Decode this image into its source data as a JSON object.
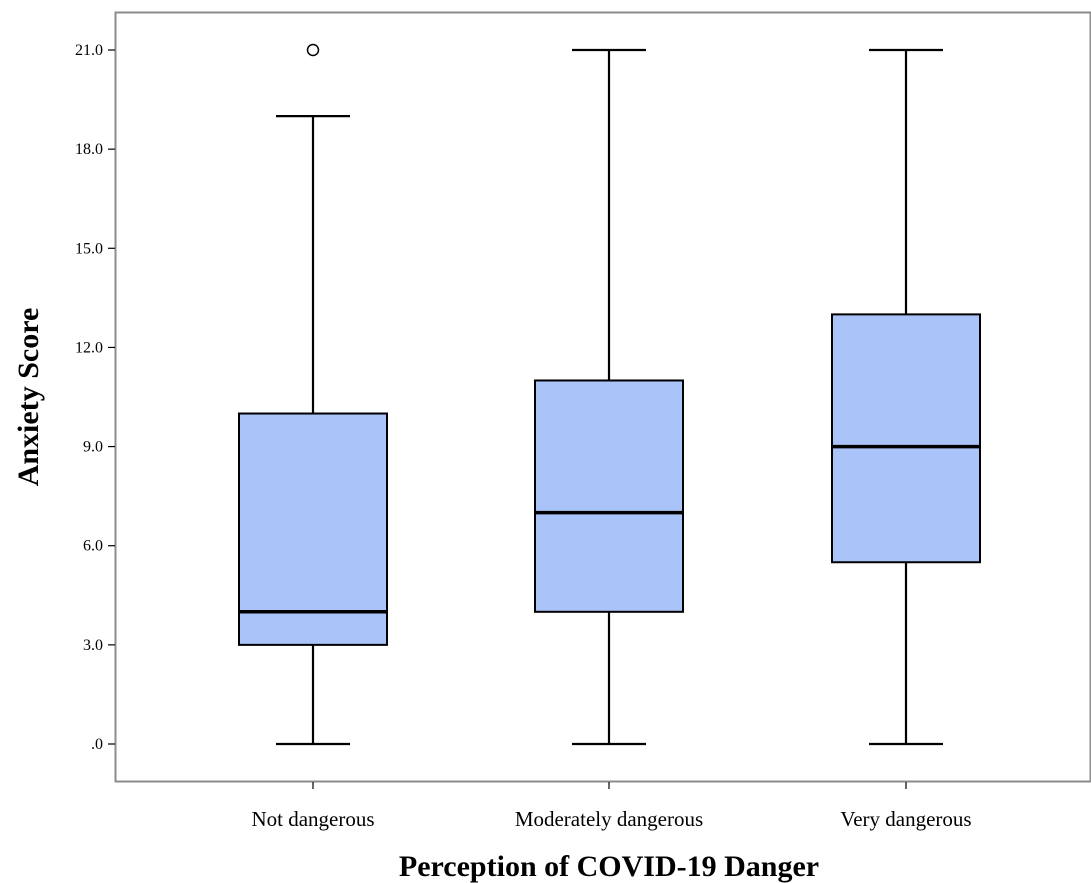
{
  "chart_data": {
    "type": "boxplot",
    "xlabel": "Perception of COVID-19 Danger",
    "ylabel": "Anxiety Score",
    "ylim": [
      0,
      21
    ],
    "yticks": [
      {
        "value": 0,
        "label": ".0"
      },
      {
        "value": 3,
        "label": "3.0"
      },
      {
        "value": 6,
        "label": "6.0"
      },
      {
        "value": 9,
        "label": "9.0"
      },
      {
        "value": 12,
        "label": "12.0"
      },
      {
        "value": 15,
        "label": "15.0"
      },
      {
        "value": 18,
        "label": "18.0"
      },
      {
        "value": 21,
        "label": "21.0"
      }
    ],
    "categories": [
      "Not dangerous",
      "Moderately dangerous",
      "Very dangerous"
    ],
    "boxes": [
      {
        "category": "Not dangerous",
        "whisker_low": 0,
        "q1": 3,
        "median": 4,
        "q3": 10,
        "whisker_high": 19,
        "outliers": [
          21
        ]
      },
      {
        "category": "Moderately dangerous",
        "whisker_low": 0,
        "q1": 4,
        "median": 7,
        "q3": 11,
        "whisker_high": 21,
        "outliers": []
      },
      {
        "category": "Very dangerous",
        "whisker_low": 0,
        "q1": 5.5,
        "median": 9,
        "q3": 13,
        "whisker_high": 21,
        "outliers": []
      }
    ],
    "grid": false,
    "colors": {
      "box_fill": "#aac4fa",
      "stroke": "#000000",
      "frame": "#8c8c8c"
    }
  }
}
